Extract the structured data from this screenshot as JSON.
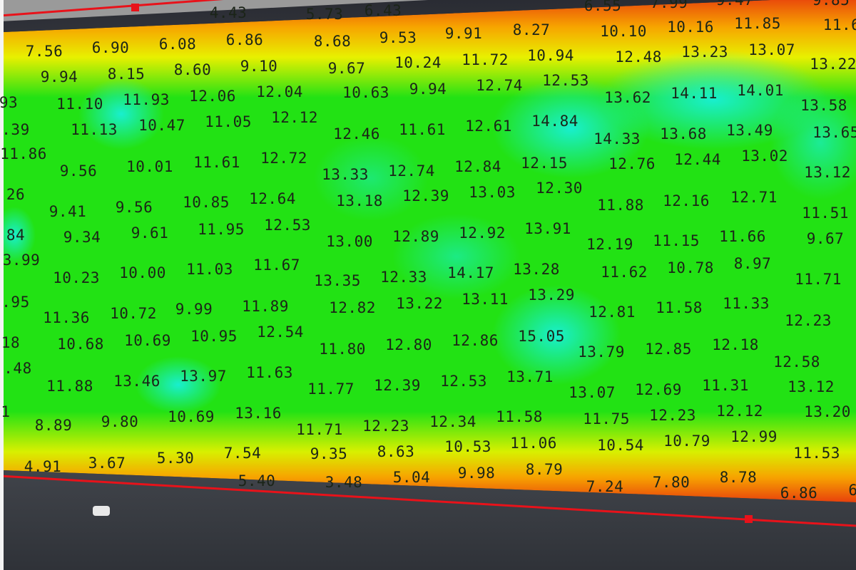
{
  "map": {
    "layer": "interpolated-value-heatmap",
    "colors": {
      "low": "#e8400c",
      "mid_low": "#f7a400",
      "mid": "#e8f000",
      "main": "#22e214",
      "high": "#18f0d8",
      "boundary_line": "#e8121a",
      "background": "#3a3d44"
    },
    "labels": [
      "4.43",
      "5.73",
      "6.43",
      "6.55",
      "7.99",
      "9.47",
      "9.85",
      "7.56",
      "6.90",
      "6.08",
      "6.86",
      "8.68",
      "9.53",
      "9.91",
      "8.27",
      "10.10",
      "10.16",
      "11.85",
      "11.6",
      "9.94",
      "8.15",
      "8.60",
      "9.10",
      "9.67",
      "10.24",
      "11.72",
      "10.94",
      "12.48",
      "13.23",
      "13.07",
      "13.22",
      "93",
      "11.10",
      "11.93",
      "12.06",
      "12.04",
      "10.63",
      "9.94",
      "12.74",
      "12.53",
      "13.62",
      "14.11",
      "14.01",
      "13.58",
      ".39",
      "11.13",
      "10.47",
      "11.05",
      "12.12",
      "12.46",
      "11.61",
      "12.61",
      "14.84",
      "14.33",
      "13.68",
      "13.49",
      "13.65",
      "11.86",
      "9.56",
      "10.01",
      "11.61",
      "12.72",
      "13.33",
      "12.74",
      "12.84",
      "12.15",
      "12.76",
      "12.44",
      "13.02",
      "13.12",
      "26",
      "9.41",
      "9.56",
      "10.85",
      "12.64",
      "13.18",
      "12.39",
      "13.03",
      "12.30",
      "11.88",
      "12.16",
      "12.71",
      "11.51",
      "84",
      "9.34",
      "9.61",
      "11.95",
      "12.53",
      "13.00",
      "12.89",
      "12.92",
      "13.91",
      "12.19",
      "11.15",
      "11.66",
      "9.67",
      "3.99",
      "10.23",
      "10.00",
      "11.03",
      "11.67",
      "13.35",
      "12.33",
      "14.17",
      "13.28",
      "11.62",
      "10.78",
      "8.97",
      "11.71",
      ".95",
      "11.36",
      "10.72",
      "9.99",
      "11.89",
      "12.82",
      "13.22",
      "13.11",
      "13.29",
      "12.81",
      "11.58",
      "11.33",
      "12.23",
      "18",
      "10.68",
      "10.69",
      "10.95",
      "12.54",
      "11.80",
      "12.80",
      "12.86",
      "15.05",
      "13.79",
      "12.85",
      "12.18",
      "12.58",
      ".48",
      "11.88",
      "13.46",
      "13.97",
      "11.63",
      "11.77",
      "12.39",
      "12.53",
      "13.71",
      "13.07",
      "12.69",
      "11.31",
      "13.12",
      "1",
      "8.89",
      "9.80",
      "10.69",
      "13.16",
      "11.71",
      "12.23",
      "12.34",
      "11.58",
      "11.75",
      "12.23",
      "12.12",
      "13.20",
      "4.91",
      "3.67",
      "5.30",
      "7.54",
      "9.35",
      "8.63",
      "10.53",
      "11.06",
      "10.54",
      "10.79",
      "12.99",
      "11.53",
      "5.40",
      "3.48",
      "5.04",
      "9.98",
      "8.79",
      "7.24",
      "7.80",
      "8.78",
      "6.86",
      "6"
    ]
  }
}
